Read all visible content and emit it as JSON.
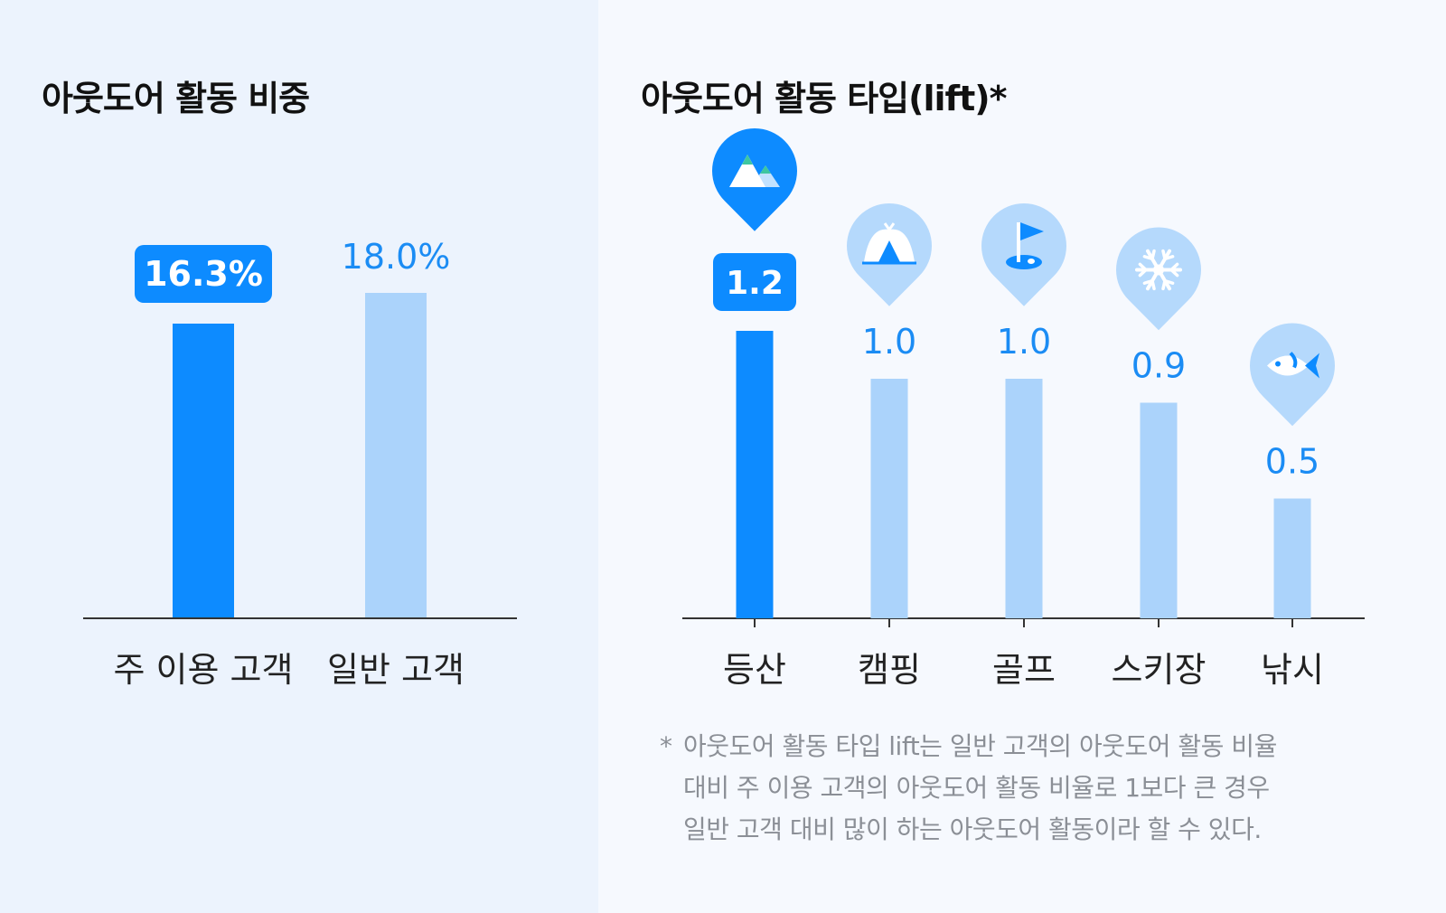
{
  "colors": {
    "highlight": "#0d8bff",
    "normal": "#abd3fb",
    "pin_normal": "#b5d9fc",
    "label_normal": "#1b8cf4",
    "axis": "#333333",
    "category_text": "#222222"
  },
  "chart_data": [
    {
      "type": "bar",
      "title": "아웃도어 활동 비중",
      "categories": [
        "주 이용 고객",
        "일반 고객"
      ],
      "values": [
        16.3,
        18.0
      ],
      "value_labels": [
        "16.3%",
        "18.0%"
      ],
      "highlight_index": 0,
      "ylim": [
        0,
        20
      ],
      "grid": false,
      "legend": "none"
    },
    {
      "type": "bar",
      "title": "아웃도어 활동 타입(lift)*",
      "categories": [
        "등산",
        "캠핑",
        "골프",
        "스키장",
        "낚시"
      ],
      "values": [
        1.2,
        1.0,
        1.0,
        0.9,
        0.5
      ],
      "value_labels": [
        "1.2",
        "1.0",
        "1.0",
        "0.9",
        "0.5"
      ],
      "icons": [
        "mountain-icon",
        "tent-icon",
        "golf-flag-icon",
        "snowflake-icon",
        "fish-icon"
      ],
      "highlight_index": 0,
      "ylim": [
        0,
        1.6
      ],
      "grid": false,
      "legend": "none"
    }
  ],
  "footnote": {
    "marker": "*",
    "lines": [
      "아웃도어 활동 타입 lift는 일반 고객의 아웃도어 활동 비율",
      "대비 주 이용 고객의 아웃도어 활동 비율로 1보다 큰 경우",
      "일반 고객 대비 많이 하는 아웃도어 활동이라 할 수 있다."
    ]
  }
}
